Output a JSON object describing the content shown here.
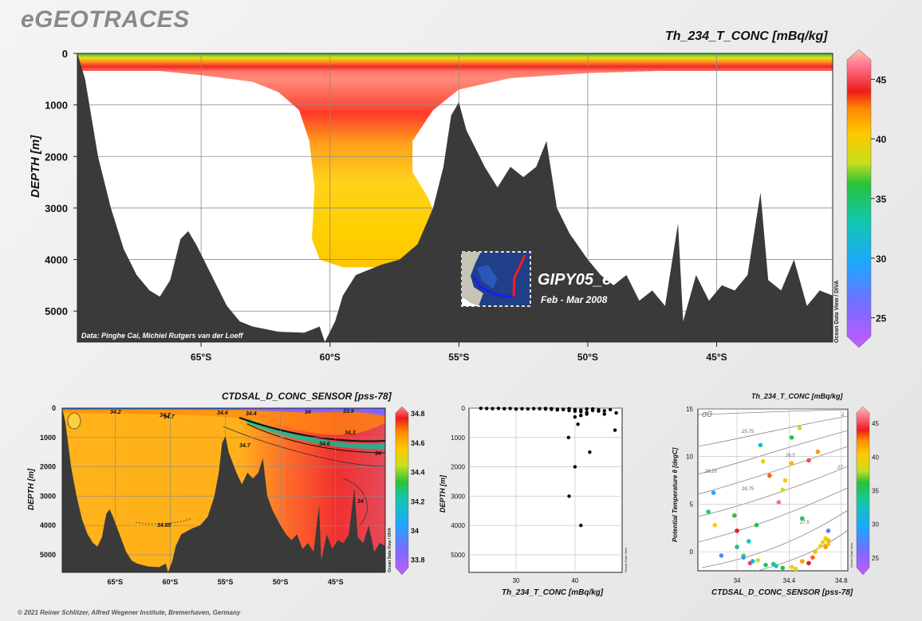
{
  "brand": "eGEOTRACES",
  "footer": "© 2021 Reiner Schlitzer, Alfred Wegener Institute, Bremerhaven, Germany",
  "colors": {
    "bathymetry": "#3a3a3a",
    "grid": "#8a8a8a"
  },
  "main": {
    "title": "Th_234_T_CONC [mBq/kg]",
    "ylabel": "DEPTH [m]",
    "credit": "Data: Pinghe Cai, Michiel Rutgers van der Loeff",
    "watermark": "Ocean Data View / DIVA",
    "cruise": "GIPY05_e",
    "period": "Feb - Mar 2008"
  },
  "small_left": {
    "title": "CTDSAL_D_CONC_SENSOR [pss-78]",
    "ylabel": "DEPTH [m]",
    "watermark": "Ocean Data View / DIVA"
  },
  "small_mid": {
    "xlabel": "Th_234_T_CONC [mBq/kg]",
    "ylabel": "DEPTH [m]",
    "watermark": "Ocean Data View"
  },
  "small_right": {
    "title": "Th_234_T_CONC [mBq/kg]",
    "xlabel": "CTDSAL_D_CONC_SENSOR [pss-78]",
    "ylabel": "Potential Temperature θ [degC]",
    "sigma": "σ0",
    "watermark": "Ocean Data View"
  },
  "chart_data": [
    {
      "type": "heatmap",
      "title": "Th_234_T_CONC [mBq/kg]",
      "ylabel": "DEPTH [m]",
      "x_ticks": [
        "65°S",
        "60°S",
        "55°S",
        "50°S",
        "45°S"
      ],
      "x_tick_values": [
        -65,
        -60,
        -55,
        -50,
        -45
      ],
      "xlim": [
        -69.8,
        -40.5
      ],
      "ylim": [
        5600,
        0
      ],
      "y_ticks": [
        0,
        1000,
        2000,
        3000,
        4000,
        5000
      ],
      "colorbar": {
        "ticks": [
          25,
          30,
          35,
          40,
          45
        ],
        "range": [
          22.5,
          47.5
        ]
      },
      "bathymetry_depth": [
        [
          -69.8,
          0
        ],
        [
          -69.5,
          500
        ],
        [
          -69,
          2000
        ],
        [
          -68.5,
          3000
        ],
        [
          -68,
          3800
        ],
        [
          -67.5,
          4300
        ],
        [
          -67,
          4600
        ],
        [
          -66.6,
          4720
        ],
        [
          -66.2,
          4400
        ],
        [
          -65.8,
          3600
        ],
        [
          -65.5,
          3450
        ],
        [
          -65.2,
          3700
        ],
        [
          -64.8,
          4100
        ],
        [
          -64.4,
          4500
        ],
        [
          -64,
          4900
        ],
        [
          -63.5,
          5200
        ],
        [
          -63,
          5300
        ],
        [
          -62,
          5400
        ],
        [
          -61,
          5420
        ],
        [
          -60.4,
          5300
        ],
        [
          -60.2,
          5600
        ],
        [
          -59.8,
          5200
        ],
        [
          -59.5,
          4700
        ],
        [
          -59,
          4300
        ],
        [
          -58.5,
          4200
        ],
        [
          -58,
          4100
        ],
        [
          -57.3,
          4000
        ],
        [
          -56.6,
          3700
        ],
        [
          -56,
          3000
        ],
        [
          -55.6,
          2200
        ],
        [
          -55.3,
          1200
        ],
        [
          -55,
          950
        ],
        [
          -54.7,
          1500
        ],
        [
          -54.3,
          1900
        ],
        [
          -54,
          2200
        ],
        [
          -53.5,
          2600
        ],
        [
          -53,
          2200
        ],
        [
          -52.5,
          2400
        ],
        [
          -52,
          2200
        ],
        [
          -51.6,
          1700
        ],
        [
          -51.2,
          3000
        ],
        [
          -50.7,
          3500
        ],
        [
          -50,
          4000
        ],
        [
          -49.5,
          4300
        ],
        [
          -49,
          4500
        ],
        [
          -48.5,
          4300
        ],
        [
          -48,
          4800
        ],
        [
          -47.5,
          4600
        ],
        [
          -47,
          4900
        ],
        [
          -46.5,
          3300
        ],
        [
          -46.3,
          5200
        ],
        [
          -45.8,
          4300
        ],
        [
          -45.3,
          4800
        ],
        [
          -44.8,
          4500
        ],
        [
          -44.3,
          4600
        ],
        [
          -43.8,
          4300
        ],
        [
          -43.3,
          2700
        ],
        [
          -43,
          4400
        ],
        [
          -42.5,
          4600
        ],
        [
          -42,
          4000
        ],
        [
          -41.5,
          4900
        ],
        [
          -41,
          4600
        ],
        [
          -40.5,
          4700
        ]
      ],
      "data_envelope_depth": [
        [
          -69.8,
          300
        ],
        [
          -67,
          320
        ],
        [
          -65,
          420
        ],
        [
          -63,
          550
        ],
        [
          -62,
          750
        ],
        [
          -61.2,
          1100
        ],
        [
          -60.8,
          1700
        ],
        [
          -60.6,
          2600
        ],
        [
          -60.7,
          3600
        ],
        [
          -60.4,
          4000
        ],
        [
          -59.5,
          4150
        ],
        [
          -57.5,
          4150
        ],
        [
          -56.2,
          3900
        ],
        [
          -55.8,
          3300
        ],
        [
          -56.2,
          2800
        ],
        [
          -56.8,
          2300
        ],
        [
          -56.8,
          1700
        ],
        [
          -56,
          1100
        ],
        [
          -55,
          700
        ],
        [
          -53,
          480
        ],
        [
          -50,
          380
        ],
        [
          -45,
          310
        ],
        [
          -40.5,
          300
        ]
      ]
    },
    {
      "type": "heatmap",
      "title": "CTDSAL_D_CONC_SENSOR [pss-78]",
      "ylabel": "DEPTH [m]",
      "x_ticks": [
        "65°S",
        "60°S",
        "55°S",
        "50°S",
        "45°S"
      ],
      "x_tick_values": [
        -65,
        -60,
        -55,
        -50,
        -45
      ],
      "xlim": [
        -69.8,
        -40.5
      ],
      "ylim": [
        5600,
        0
      ],
      "y_ticks": [
        0,
        1000,
        2000,
        3000,
        4000,
        5000
      ],
      "colorbar": {
        "ticks": [
          33.8,
          34,
          34.2,
          34.4,
          34.6,
          34.8
        ],
        "range": [
          33.7,
          34.85
        ]
      },
      "contour_labels": [
        "34.2",
        "34.7",
        "34.4",
        "34.4",
        "34",
        "33.9",
        "34.7",
        "34.3",
        "34.6",
        "34.7",
        "34",
        "34.65",
        "34"
      ]
    },
    {
      "type": "scatter",
      "xlabel": "Th_234_T_CONC [mBq/kg]",
      "ylabel": "DEPTH [m]",
      "xlim": [
        22,
        48
      ],
      "ylim": [
        5600,
        0
      ],
      "x_ticks": [
        30,
        40
      ],
      "y_ticks": [
        0,
        1000,
        2000,
        3000,
        4000,
        5000
      ],
      "points": [
        [
          24,
          5
        ],
        [
          25,
          10
        ],
        [
          26,
          15
        ],
        [
          27,
          8
        ],
        [
          28,
          20
        ],
        [
          29,
          12
        ],
        [
          30,
          30
        ],
        [
          31,
          18
        ],
        [
          32,
          25
        ],
        [
          33,
          15
        ],
        [
          34,
          20
        ],
        [
          35,
          30
        ],
        [
          36,
          40
        ],
        [
          37,
          60
        ],
        [
          38,
          50
        ],
        [
          39,
          80
        ],
        [
          40,
          100
        ],
        [
          41,
          120
        ],
        [
          42,
          150
        ],
        [
          43,
          80
        ],
        [
          44,
          100
        ],
        [
          45,
          200
        ],
        [
          46,
          50
        ],
        [
          47,
          160
        ],
        [
          38,
          40
        ],
        [
          40,
          50
        ],
        [
          42,
          30
        ],
        [
          44,
          60
        ],
        [
          41,
          70
        ],
        [
          39,
          20
        ],
        [
          43,
          25
        ],
        [
          45,
          90
        ],
        [
          36,
          20
        ],
        [
          35,
          10
        ],
        [
          37,
          35
        ],
        [
          42,
          200
        ],
        [
          41,
          250
        ],
        [
          40,
          300
        ],
        [
          38.9,
          1000
        ],
        [
          40.5,
          550
        ],
        [
          46.8,
          750
        ],
        [
          42.5,
          1500
        ],
        [
          40,
          2000
        ],
        [
          39,
          3000
        ],
        [
          41,
          4000
        ]
      ]
    },
    {
      "type": "scatter",
      "title": "Th_234_T_CONC [mBq/kg]",
      "xlabel": "CTDSAL_D_CONC_SENSOR [pss-78]",
      "ylabel": "Potential Temperature θ [degC]",
      "xlim": [
        33.7,
        34.85
      ],
      "ylim": [
        -2,
        15
      ],
      "x_ticks": [
        34,
        34.4,
        34.8
      ],
      "x_tick_labels": [
        "34",
        "34.4",
        "34.8"
      ],
      "y_ticks": [
        0,
        5,
        10,
        15
      ],
      "colorbar": {
        "ticks": [
          25,
          30,
          35,
          40,
          45
        ],
        "range": [
          22.5,
          47.5
        ]
      },
      "isopycnal_labels": [
        "25.75",
        "26.25",
        "26.75",
        "26.5",
        "27",
        "27.5",
        "2"
      ],
      "points": [
        [
          34.18,
          11.2,
          32
        ],
        [
          34.42,
          12,
          36
        ],
        [
          34.48,
          13,
          38
        ],
        [
          34.55,
          9.6,
          45
        ],
        [
          34.62,
          10.5,
          42
        ],
        [
          34.42,
          9.3,
          41
        ],
        [
          34.25,
          8,
          43
        ],
        [
          34.35,
          6.5,
          38
        ],
        [
          34.37,
          7.5,
          40
        ],
        [
          33.82,
          6.2,
          30
        ],
        [
          33.78,
          4.2,
          34
        ],
        [
          33.98,
          3.8,
          36
        ],
        [
          33.83,
          2.8,
          40
        ],
        [
          34,
          2.2,
          44
        ],
        [
          34.09,
          1.1,
          33
        ],
        [
          34.05,
          -0.4,
          37
        ],
        [
          33.88,
          -0.4,
          28
        ],
        [
          34.1,
          -1.2,
          45
        ],
        [
          34.16,
          -0.9,
          38
        ],
        [
          34.28,
          -1.3,
          34
        ],
        [
          34.35,
          -1.7,
          36
        ],
        [
          34.42,
          -1.6,
          40
        ],
        [
          34.5,
          -1,
          42
        ],
        [
          34.6,
          0,
          41
        ],
        [
          34.64,
          0.6,
          40
        ],
        [
          34.66,
          1,
          39
        ],
        [
          34.68,
          1.4,
          40
        ],
        [
          34.7,
          0.8,
          40
        ],
        [
          34.7,
          1.2,
          41
        ],
        [
          34.68,
          0.5,
          42
        ],
        [
          34.3,
          -1.5,
          33
        ],
        [
          34.22,
          -1.4,
          35
        ],
        [
          34.12,
          -1,
          31
        ],
        [
          34.05,
          -0.6,
          29
        ],
        [
          34.55,
          -1.2,
          44
        ],
        [
          34.58,
          -0.6,
          43
        ],
        [
          34.45,
          -1.8,
          38
        ],
        [
          34.0,
          0.5,
          34
        ],
        [
          34.7,
          2.2,
          27
        ],
        [
          34.15,
          2.8,
          36
        ],
        [
          34.5,
          3.5,
          35
        ],
        [
          34.32,
          5.2,
          46
        ],
        [
          34.2,
          9.5,
          39
        ]
      ]
    }
  ]
}
